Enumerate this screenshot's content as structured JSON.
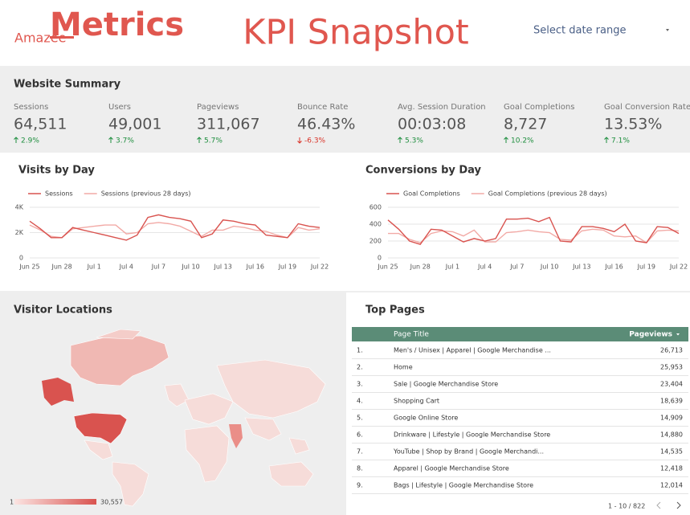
{
  "header": {
    "logo_small": "Amazee",
    "logo": "Metrics",
    "title": "KPI Snapshot",
    "date_range": "Select date range"
  },
  "summary": {
    "title": "Website Summary",
    "metrics": [
      {
        "label": "Sessions",
        "value": "64,511",
        "change": "2.9%",
        "direction": "up"
      },
      {
        "label": "Users",
        "value": "49,001",
        "change": "3.7%",
        "direction": "up"
      },
      {
        "label": "Pageviews",
        "value": "311,067",
        "change": "5.7%",
        "direction": "up"
      },
      {
        "label": "Bounce Rate",
        "value": "46.43%",
        "change": "-6.3%",
        "direction": "down"
      },
      {
        "label": "Avg. Session Duration",
        "value": "00:03:08",
        "change": "5.3%",
        "direction": "up"
      },
      {
        "label": "Goal Completions",
        "value": "8,727",
        "change": "10.2%",
        "direction": "up"
      },
      {
        "label": "Goal Conversion Rate",
        "value": "13.53%",
        "change": "7.1%",
        "direction": "up"
      }
    ]
  },
  "chart_data": [
    {
      "type": "line",
      "title": "Visits by Day",
      "categories": [
        "Jun 25",
        null,
        null,
        "Jun 28",
        null,
        null,
        "Jul 1",
        null,
        null,
        "Jul 4",
        null,
        null,
        "Jul 7",
        null,
        null,
        "Jul 10",
        null,
        null,
        "Jul 13",
        null,
        null,
        "Jul 16",
        null,
        null,
        "Jul 19",
        null,
        null,
        "Jul 22"
      ],
      "series": [
        {
          "name": "Sessions",
          "color": "#d9534f",
          "values": [
            2900,
            2300,
            1600,
            1600,
            2400,
            2200,
            2000,
            1800,
            1600,
            1400,
            1800,
            3200,
            3400,
            3200,
            3100,
            2900,
            1600,
            1900,
            3000,
            2900,
            2700,
            2600,
            1800,
            1700,
            1600,
            2700,
            2500,
            2400
          ]
        },
        {
          "name": "Sessions (previous 28 days)",
          "color": "#f2aaa6",
          "values": [
            2600,
            2200,
            1700,
            1600,
            2300,
            2400,
            2500,
            2600,
            2600,
            1900,
            2000,
            2700,
            2800,
            2700,
            2500,
            2100,
            1700,
            2200,
            2200,
            2500,
            2400,
            2200,
            2100,
            1800,
            1600,
            2400,
            2200,
            2300
          ]
        }
      ],
      "ylim": [
        0,
        4000
      ],
      "yticks": [
        0,
        {
          "value": 2000,
          "label": "2K"
        },
        {
          "value": 4000,
          "label": "4K"
        }
      ],
      "grid": true
    },
    {
      "type": "line",
      "title": "Conversions by Day",
      "categories": [
        "Jun 25",
        null,
        null,
        "Jun 28",
        null,
        null,
        "Jul 1",
        null,
        null,
        "Jul 4",
        null,
        null,
        "Jul 7",
        null,
        null,
        "Jul 10",
        null,
        null,
        "Jul 13",
        null,
        null,
        "Jul 16",
        null,
        null,
        "Jul 19",
        null,
        null,
        "Jul 22"
      ],
      "series": [
        {
          "name": "Goal Completions",
          "color": "#d9534f",
          "values": [
            450,
            340,
            200,
            160,
            340,
            330,
            260,
            190,
            230,
            200,
            230,
            460,
            460,
            470,
            430,
            480,
            200,
            190,
            370,
            370,
            350,
            310,
            400,
            200,
            180,
            370,
            360,
            290
          ]
        },
        {
          "name": "Goal Completions (previous 28 days)",
          "color": "#f2aaa6",
          "values": [
            290,
            290,
            220,
            180,
            290,
            320,
            310,
            260,
            330,
            190,
            190,
            300,
            310,
            330,
            310,
            300,
            220,
            210,
            320,
            340,
            330,
            260,
            250,
            260,
            180,
            320,
            330,
            320
          ]
        }
      ],
      "ylim": [
        0,
        600
      ],
      "yticks": [
        0,
        200,
        400,
        600
      ],
      "grid": true
    }
  ],
  "map": {
    "title": "Visitor Locations",
    "legend_min": "1",
    "legend_max": "30,557"
  },
  "table": {
    "title": "Top Pages",
    "columns": [
      "Page Title",
      "Pageviews"
    ],
    "rows": [
      [
        "1.",
        "Men's / Unisex | Apparel | Google Merchandise ...",
        "26,713"
      ],
      [
        "2.",
        "Home",
        "25,953"
      ],
      [
        "3.",
        "Sale | Google Merchandise Store",
        "23,404"
      ],
      [
        "4.",
        "Shopping Cart",
        "18,639"
      ],
      [
        "5.",
        "Google Online Store",
        "14,909"
      ],
      [
        "6.",
        "Drinkware | Lifestyle | Google Merchandise Store",
        "14,880"
      ],
      [
        "7.",
        "YouTube | Shop by Brand | Google Merchandi...",
        "14,535"
      ],
      [
        "8.",
        "Apparel | Google Merchandise Store",
        "12,418"
      ],
      [
        "9.",
        "Bags | Lifestyle | Google Merchandise Store",
        "12,014"
      ]
    ],
    "pagination": "1 - 10 / 822"
  }
}
